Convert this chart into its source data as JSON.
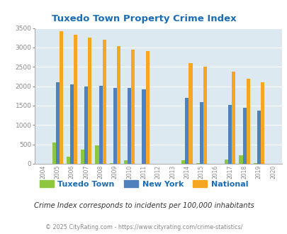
{
  "title": "Tuxedo Town Property Crime Index",
  "subtitle": "Crime Index corresponds to incidents per 100,000 inhabitants",
  "footer": "© 2025 CityRating.com - https://www.cityrating.com/crime-statistics/",
  "years": [
    2004,
    2005,
    2006,
    2007,
    2008,
    2009,
    2010,
    2011,
    2012,
    2013,
    2014,
    2015,
    2016,
    2017,
    2018,
    2019,
    2020
  ],
  "tuxedo": [
    0,
    550,
    175,
    360,
    480,
    10,
    90,
    0,
    0,
    0,
    85,
    10,
    0,
    115,
    225,
    25,
    0
  ],
  "new_york": [
    0,
    2100,
    2050,
    2000,
    2020,
    1950,
    1950,
    1920,
    0,
    0,
    1700,
    1600,
    0,
    1510,
    1450,
    1370,
    0
  ],
  "national": [
    0,
    3420,
    3330,
    3260,
    3200,
    3040,
    2940,
    2900,
    0,
    0,
    2600,
    2500,
    0,
    2370,
    2200,
    2110,
    0
  ],
  "bar_width": 0.25,
  "ylim": [
    0,
    3500
  ],
  "yticks": [
    0,
    500,
    1000,
    1500,
    2000,
    2500,
    3000,
    3500
  ],
  "tuxedo_color": "#8dc63f",
  "newyork_color": "#4f81bd",
  "national_color": "#f5a623",
  "bg_color": "#dce9f0",
  "title_color": "#1a6db5",
  "grid_color": "#ffffff",
  "legend_text_color": "#1a6db5",
  "subtitle_color": "#333333",
  "footer_color": "#888888",
  "tick_color": "#888888"
}
